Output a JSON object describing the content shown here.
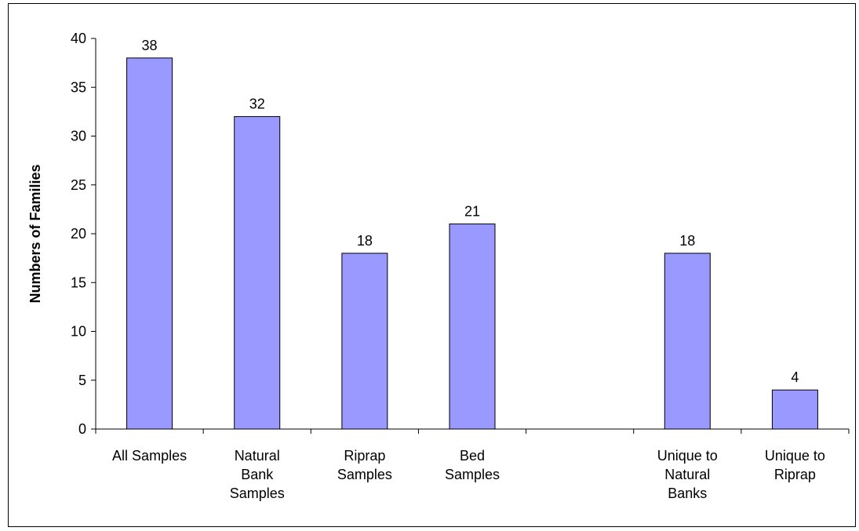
{
  "chart_data": {
    "type": "bar",
    "categories": [
      [
        "All Samples"
      ],
      [
        "Natural",
        "Bank",
        "Samples"
      ],
      [
        "Riprap",
        "Samples"
      ],
      [
        "Bed",
        "Samples"
      ],
      [],
      [
        "Unique to",
        "Natural",
        "Banks"
      ],
      [
        "Unique to",
        "Riprap"
      ]
    ],
    "values": [
      38,
      32,
      18,
      21,
      null,
      18,
      4
    ],
    "data_labels": [
      "38",
      "32",
      "18",
      "21",
      "",
      "18",
      "4"
    ],
    "xlabel": "",
    "ylabel": "Numbers of Families",
    "ylim": [
      0,
      40
    ],
    "yticks": [
      0,
      5,
      10,
      15,
      20,
      25,
      30,
      35,
      40
    ],
    "grid": false,
    "legend": "none",
    "colors": {
      "bar_fill": "#9999ff",
      "bar_stroke": "#000000",
      "axis": "#000000"
    }
  }
}
